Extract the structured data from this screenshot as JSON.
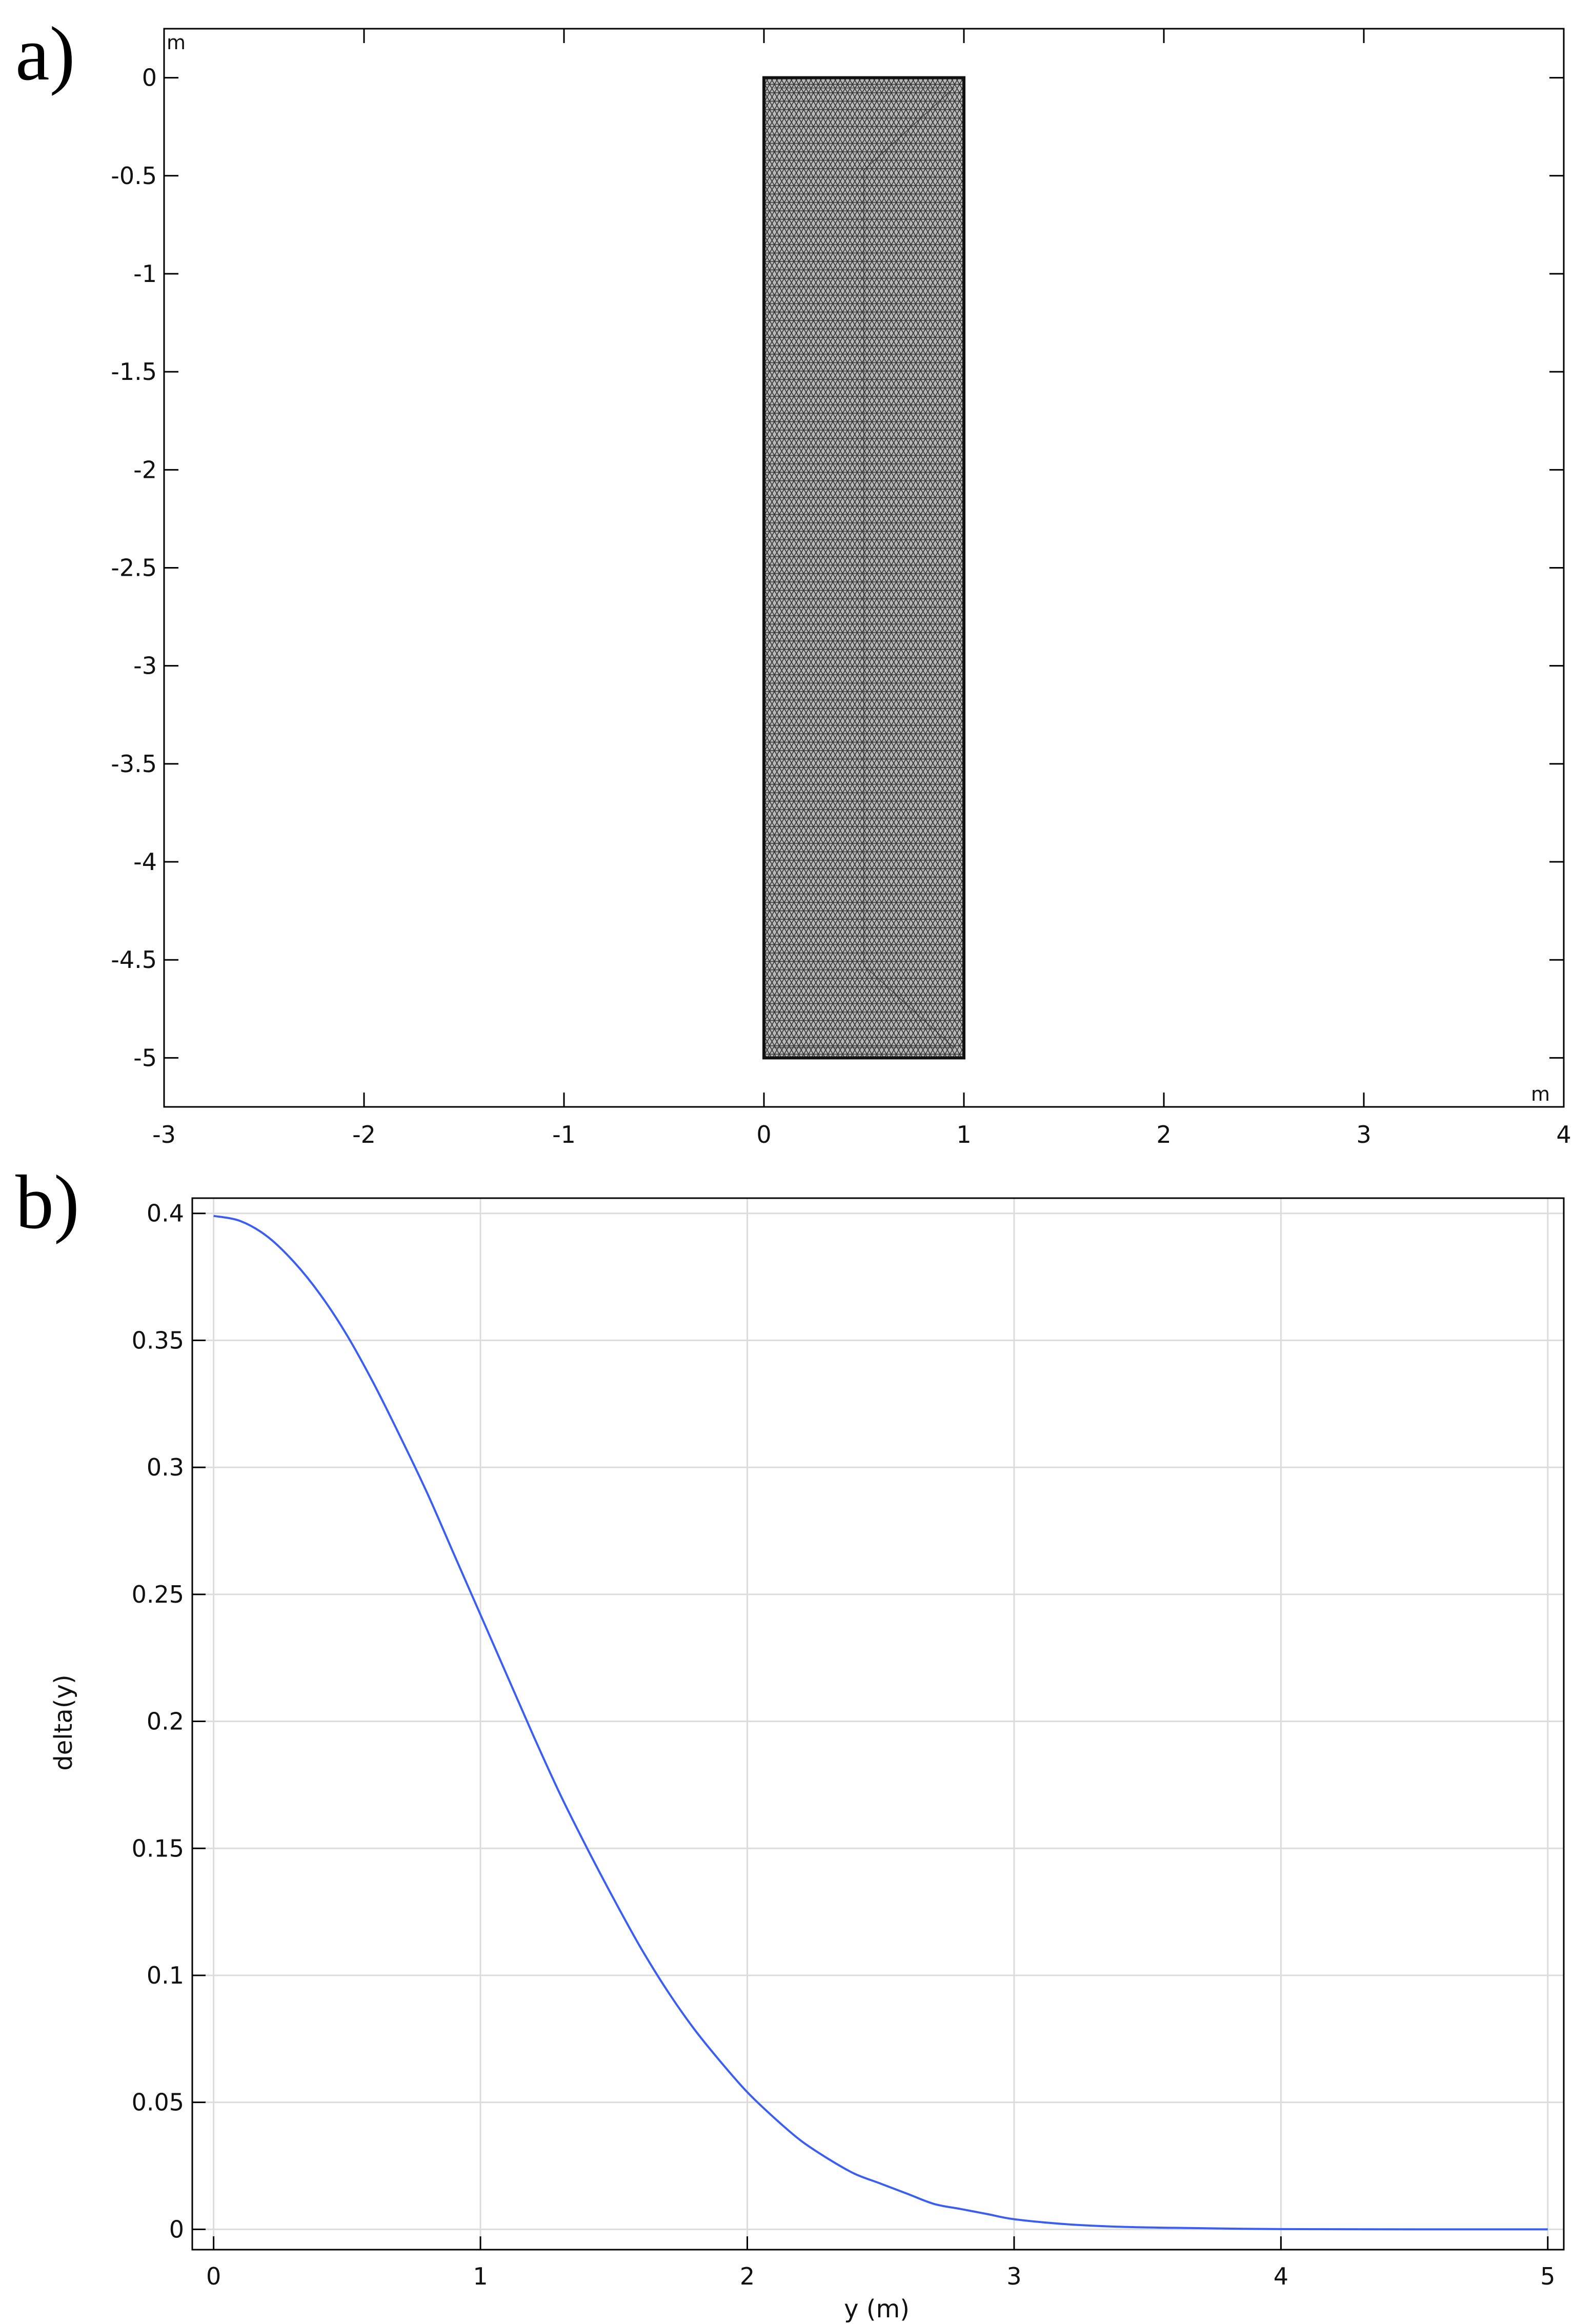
{
  "chart_data": [
    {
      "panel": "a)",
      "type": "mesh",
      "unit_top_left": "m",
      "unit_bottom_right": "m",
      "xlim": [
        -3,
        4
      ],
      "ylim": [
        -5.25,
        0.25
      ],
      "x_ticks": [
        "-3",
        "-2",
        "-1",
        "0",
        "1",
        "2",
        "3",
        "4"
      ],
      "x_tick_values": [
        -3,
        -2,
        -1,
        0,
        1,
        2,
        3,
        4
      ],
      "y_ticks": [
        "0",
        "-0.5",
        "-1",
        "-1.5",
        "-2",
        "-2.5",
        "-3",
        "-3.5",
        "-4",
        "-4.5",
        "-5"
      ],
      "y_tick_values": [
        0,
        -0.5,
        -1,
        -1.5,
        -2,
        -2.5,
        -3,
        -3.5,
        -4,
        -4.5,
        -5
      ],
      "domain": {
        "x0": 0,
        "x1": 1,
        "y0": -5,
        "y1": 0
      },
      "mesh_element_size": 0.05,
      "colors": {
        "mesh_fill": "#b9b9b9",
        "mesh_line": "#333333",
        "boundary": "#111111"
      }
    },
    {
      "panel": "b)",
      "type": "line",
      "xlabel": "y (m)",
      "ylabel": "delta(y)",
      "xlim": [
        -0.08,
        5.06
      ],
      "ylim": [
        -0.008,
        0.406
      ],
      "grid": true,
      "x_ticks": [
        "0",
        "1",
        "2",
        "3",
        "4",
        "5"
      ],
      "x_tick_values": [
        0,
        1,
        2,
        3,
        4,
        5
      ],
      "y_ticks": [
        "0",
        "0.05",
        "0.1",
        "0.15",
        "0.2",
        "0.25",
        "0.3",
        "0.35",
        "0.4"
      ],
      "y_tick_values": [
        0,
        0.05,
        0.1,
        0.15,
        0.2,
        0.25,
        0.3,
        0.35,
        0.4
      ],
      "series": [
        {
          "color": "#3a5ef5",
          "x": [
            0,
            0.1,
            0.2,
            0.3,
            0.4,
            0.5,
            0.6,
            0.7,
            0.8,
            0.9,
            1.0,
            1.1,
            1.2,
            1.3,
            1.4,
            1.5,
            1.6,
            1.7,
            1.8,
            1.9,
            2.0,
            2.1,
            2.2,
            2.3,
            2.4,
            2.5,
            2.6,
            2.7,
            2.8,
            2.9,
            3.0,
            3.2,
            3.4,
            3.6,
            3.8,
            4.0,
            4.5,
            5.0
          ],
          "y": [
            0.399,
            0.397,
            0.391,
            0.381,
            0.368,
            0.352,
            0.333,
            0.312,
            0.29,
            0.266,
            0.242,
            0.218,
            0.194,
            0.171,
            0.15,
            0.13,
            0.111,
            0.094,
            0.079,
            0.066,
            0.054,
            0.044,
            0.035,
            0.028,
            0.022,
            0.018,
            0.014,
            0.01,
            0.008,
            0.006,
            0.004,
            0.002,
            0.001,
            0.0006,
            0.0003,
            0.0001,
            0.0,
            0.0
          ]
        }
      ]
    }
  ]
}
